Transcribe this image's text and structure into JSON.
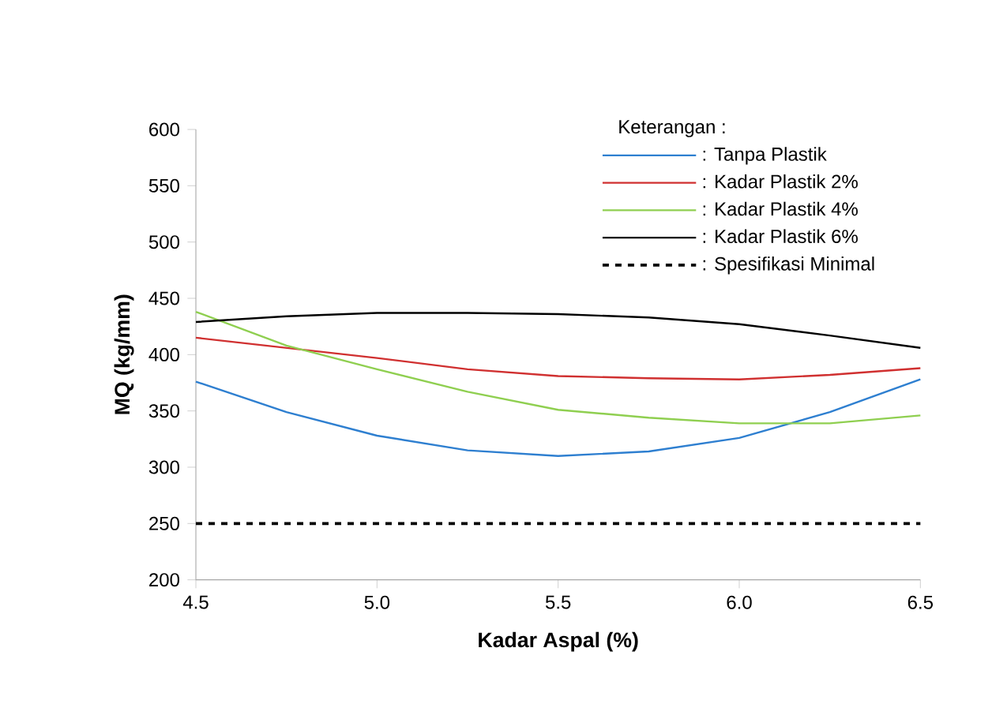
{
  "chart_data": {
    "type": "line",
    "xlabel": "Kadar Aspal (%)",
    "ylabel": "MQ (kg/mm)",
    "legend_title": "Keterangan :",
    "legend": "top right",
    "x": [
      4.5,
      4.75,
      5.0,
      5.25,
      5.5,
      5.75,
      6.0,
      6.25,
      6.5
    ],
    "xlim": [
      4.5,
      6.5
    ],
    "xticks": [
      {
        "value": 4.5,
        "label": "4.5"
      },
      {
        "value": 5.0,
        "label": "5.0"
      },
      {
        "value": 5.5,
        "label": "5.5"
      },
      {
        "value": 6.0,
        "label": "6.0"
      },
      {
        "value": 6.5,
        "label": "6.5"
      }
    ],
    "ylim": [
      200,
      600
    ],
    "yticks": [
      200,
      250,
      300,
      350,
      400,
      450,
      500,
      550,
      600
    ],
    "series": [
      {
        "name": ": Tanpa  Plastik",
        "color": "#2e7fd0",
        "values": [
          376,
          349,
          328,
          315,
          310,
          314,
          326,
          349,
          378
        ]
      },
      {
        "name": ": Kadar Plastik 2%",
        "color": "#d03030",
        "values": [
          415,
          406,
          397,
          387,
          381,
          379,
          378,
          382,
          388
        ]
      },
      {
        "name": ": Kadar Plastik 4%",
        "color": "#8fcf50",
        "values": [
          438,
          408,
          387,
          367,
          351,
          344,
          339,
          339,
          346
        ]
      },
      {
        "name": ": Kadar Plastik 6%",
        "color": "#000000",
        "values": [
          429,
          434,
          437,
          437,
          436,
          433,
          427,
          417,
          406
        ]
      }
    ],
    "ref_lines": [
      {
        "axis": "y",
        "value": 250,
        "label": ": Spesifikasi Minimal",
        "color": "#000000",
        "line_style": "dashed"
      }
    ]
  }
}
